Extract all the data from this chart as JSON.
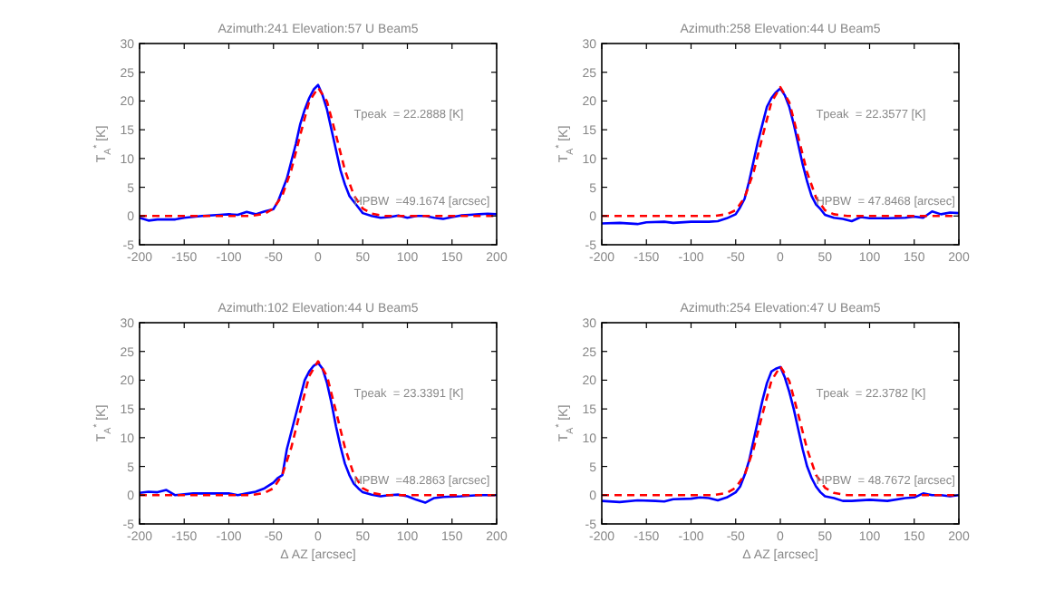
{
  "chart_data": [
    {
      "type": "line",
      "title": "Azimuth:241 Elevation:57 U Beam5",
      "ylabel": "T$_{A}$$^{*}$ [K]",
      "xlim": [
        -200,
        200
      ],
      "xticks": [
        -200,
        -150,
        -100,
        -50,
        0,
        50,
        100,
        150,
        200
      ],
      "ylim": [
        -5,
        30
      ],
      "yticks": [
        -5,
        0,
        5,
        10,
        15,
        20,
        25,
        30
      ],
      "grid": false,
      "annotations": [
        "Tpeak  = 22.2888 [K]",
        "HPBW  =49.1674 [arcsec]"
      ],
      "series": [
        {
          "color": "#0000ff",
          "line_style": "solid",
          "x": [
            -200,
            -190,
            -180,
            -160,
            -150,
            -130,
            -110,
            -100,
            -90,
            -80,
            -70,
            -60,
            -50,
            -45,
            -40,
            -35,
            -30,
            -25,
            -20,
            -15,
            -10,
            -5,
            0,
            5,
            10,
            15,
            20,
            25,
            30,
            35,
            40,
            45,
            50,
            60,
            70,
            80,
            90,
            100,
            110,
            120,
            130,
            140,
            150,
            160,
            170,
            180,
            190,
            200
          ],
          "values": [
            -0.3,
            -0.8,
            -0.6,
            -0.6,
            -0.3,
            0,
            0.2,
            0.3,
            0.2,
            0.7,
            0.3,
            0.8,
            1.2,
            2.5,
            4.5,
            6.5,
            9.5,
            12.5,
            16,
            18.5,
            20.5,
            22,
            22.8,
            21,
            18.5,
            15,
            11.5,
            8,
            5.5,
            3.5,
            2.5,
            1.5,
            0.5,
            0,
            -0.3,
            -0.2,
            0.1,
            -0.3,
            0,
            0,
            -0.3,
            -0.5,
            -0.2,
            0.1,
            0.2,
            0.3,
            0.4,
            0.3
          ]
        },
        {
          "color": "#ff0000",
          "line_style": "dashed",
          "x": [
            -200,
            -100,
            -75,
            -60,
            -50,
            -40,
            -30,
            -20,
            -10,
            0,
            10,
            20,
            30,
            40,
            50,
            60,
            75,
            100,
            200
          ],
          "values": [
            0,
            0,
            0,
            0.4,
            1.3,
            3.6,
            8,
            14.1,
            19.9,
            22.3,
            19.9,
            14.1,
            8,
            3.6,
            1.3,
            0.4,
            0,
            0,
            0
          ]
        }
      ]
    },
    {
      "type": "line",
      "title": "Azimuth:258 Elevation:44 U Beam5",
      "ylabel": "T$_{A}$$^{*}$ [K]",
      "xlim": [
        -200,
        200
      ],
      "xticks": [
        -200,
        -150,
        -100,
        -50,
        0,
        50,
        100,
        150,
        200
      ],
      "ylim": [
        -5,
        30
      ],
      "yticks": [
        -5,
        0,
        5,
        10,
        15,
        20,
        25,
        30
      ],
      "grid": false,
      "annotations": [
        "Tpeak  = 22.3577 [K]",
        "HPBW  = 47.8468 [arcsec]"
      ],
      "series": [
        {
          "color": "#0000ff",
          "line_style": "solid",
          "x": [
            -200,
            -180,
            -160,
            -150,
            -130,
            -120,
            -100,
            -80,
            -70,
            -60,
            -50,
            -45,
            -40,
            -35,
            -30,
            -25,
            -20,
            -15,
            -10,
            -5,
            0,
            5,
            10,
            15,
            20,
            25,
            30,
            35,
            40,
            45,
            50,
            60,
            70,
            80,
            90,
            100,
            120,
            140,
            150,
            160,
            170,
            180,
            190,
            200
          ],
          "values": [
            -1.3,
            -1.2,
            -1.4,
            -1.1,
            -1,
            -1.2,
            -1,
            -1,
            -0.9,
            -0.4,
            0.3,
            1.5,
            3,
            6,
            9.5,
            13,
            16,
            19,
            20.5,
            21.5,
            22.2,
            21,
            19,
            16,
            12.5,
            9,
            6,
            3.5,
            2,
            1.2,
            0.2,
            -0.3,
            -0.5,
            -0.9,
            -0.2,
            -0.4,
            -0.4,
            -0.3,
            -0.1,
            -0.3,
            0.8,
            0.3,
            0.6,
            0.5
          ]
        },
        {
          "color": "#ff0000",
          "line_style": "dashed",
          "x": [
            -200,
            -100,
            -75,
            -60,
            -50,
            -40,
            -30,
            -20,
            -10,
            0,
            10,
            20,
            30,
            40,
            50,
            60,
            75,
            100,
            200
          ],
          "values": [
            0,
            0,
            0,
            0.3,
            1,
            3.2,
            7.6,
            13.8,
            19.8,
            22.4,
            19.8,
            13.8,
            7.6,
            3.2,
            1,
            0.3,
            0,
            0,
            0
          ]
        }
      ]
    },
    {
      "type": "line",
      "title": "Azimuth:102 Elevation:44 U Beam5",
      "xlabel": "Δ AZ [arcsec]",
      "ylabel": "T$_{A}$$^{*}$ [K]",
      "xlim": [
        -200,
        200
      ],
      "xticks": [
        -200,
        -150,
        -100,
        -50,
        0,
        50,
        100,
        150,
        200
      ],
      "ylim": [
        -5,
        30
      ],
      "yticks": [
        -5,
        0,
        5,
        10,
        15,
        20,
        25,
        30
      ],
      "grid": false,
      "annotations": [
        "Tpeak  = 23.3391 [K]",
        "HPBW  =48.2863 [arcsec]"
      ],
      "series": [
        {
          "color": "#0000ff",
          "line_style": "solid",
          "x": [
            -200,
            -190,
            -180,
            -170,
            -160,
            -140,
            -120,
            -100,
            -90,
            -80,
            -70,
            -60,
            -50,
            -45,
            -40,
            -35,
            -30,
            -25,
            -20,
            -15,
            -10,
            -5,
            0,
            5,
            10,
            15,
            20,
            25,
            30,
            35,
            40,
            45,
            50,
            60,
            70,
            80,
            90,
            100,
            110,
            120,
            130,
            140,
            160,
            180,
            200
          ],
          "values": [
            0.4,
            0.6,
            0.5,
            0.9,
            0,
            0.3,
            0.3,
            0.3,
            0,
            0.3,
            0.6,
            1.2,
            2.2,
            3,
            3.5,
            8,
            11,
            14,
            17,
            20,
            21.5,
            22.5,
            23,
            22,
            19.5,
            16,
            12,
            8.5,
            5.5,
            3.5,
            2,
            1.2,
            0.5,
            0.1,
            -0.2,
            0,
            0.1,
            -0.2,
            -0.8,
            -1.3,
            -0.5,
            -0.3,
            -0.2,
            0,
            0
          ]
        },
        {
          "color": "#ff0000",
          "line_style": "dashed",
          "x": [
            -200,
            -100,
            -75,
            -60,
            -50,
            -40,
            -30,
            -20,
            -10,
            0,
            10,
            20,
            30,
            40,
            50,
            60,
            75,
            100,
            200
          ],
          "values": [
            0,
            0,
            0,
            0.4,
            1.2,
            3.6,
            8.3,
            14.6,
            20.7,
            23.3,
            20.7,
            14.6,
            8.3,
            3.6,
            1.2,
            0.4,
            0,
            0,
            0
          ]
        }
      ]
    },
    {
      "type": "line",
      "title": "Azimuth:254 Elevation:47 U Beam5",
      "xlabel": "Δ AZ [arcsec]",
      "ylabel": "T$_{A}$$^{*}$ [K]",
      "xlim": [
        -200,
        200
      ],
      "xticks": [
        -200,
        -150,
        -100,
        -50,
        0,
        50,
        100,
        150,
        200
      ],
      "ylim": [
        -5,
        30
      ],
      "yticks": [
        -5,
        0,
        5,
        10,
        15,
        20,
        25,
        30
      ],
      "grid": false,
      "annotations": [
        "Tpeak  = 22.3782 [K]",
        "HPBW  = 48.7672 [arcsec]"
      ],
      "series": [
        {
          "color": "#0000ff",
          "line_style": "solid",
          "x": [
            -200,
            -180,
            -160,
            -140,
            -130,
            -120,
            -100,
            -90,
            -80,
            -70,
            -60,
            -50,
            -45,
            -40,
            -35,
            -30,
            -25,
            -20,
            -15,
            -10,
            -5,
            0,
            5,
            10,
            15,
            20,
            25,
            30,
            35,
            40,
            45,
            50,
            60,
            70,
            80,
            100,
            120,
            140,
            150,
            160,
            170,
            180,
            190,
            200
          ],
          "values": [
            -1,
            -1.2,
            -0.9,
            -1,
            -1.1,
            -0.7,
            -0.6,
            -0.4,
            -0.5,
            -0.9,
            -0.4,
            0.5,
            1.5,
            3.5,
            6,
            9.5,
            13,
            16.5,
            19.5,
            21.5,
            22,
            22.3,
            20.5,
            18,
            15,
            11.5,
            8,
            5,
            3,
            1.5,
            0.5,
            -0.2,
            -0.5,
            -1,
            -1,
            -0.8,
            -1,
            -0.5,
            -0.4,
            0.3,
            0,
            0,
            -0.2,
            0
          ]
        },
        {
          "color": "#ff0000",
          "line_style": "dashed",
          "x": [
            -200,
            -100,
            -75,
            -60,
            -50,
            -40,
            -30,
            -20,
            -10,
            0,
            10,
            20,
            30,
            40,
            50,
            60,
            75,
            100,
            200
          ],
          "values": [
            0,
            0,
            0,
            0.4,
            1.3,
            3.5,
            8,
            14.1,
            19.9,
            22.4,
            19.9,
            14.1,
            8,
            3.5,
            1.3,
            0.4,
            0,
            0,
            0
          ]
        }
      ]
    }
  ]
}
